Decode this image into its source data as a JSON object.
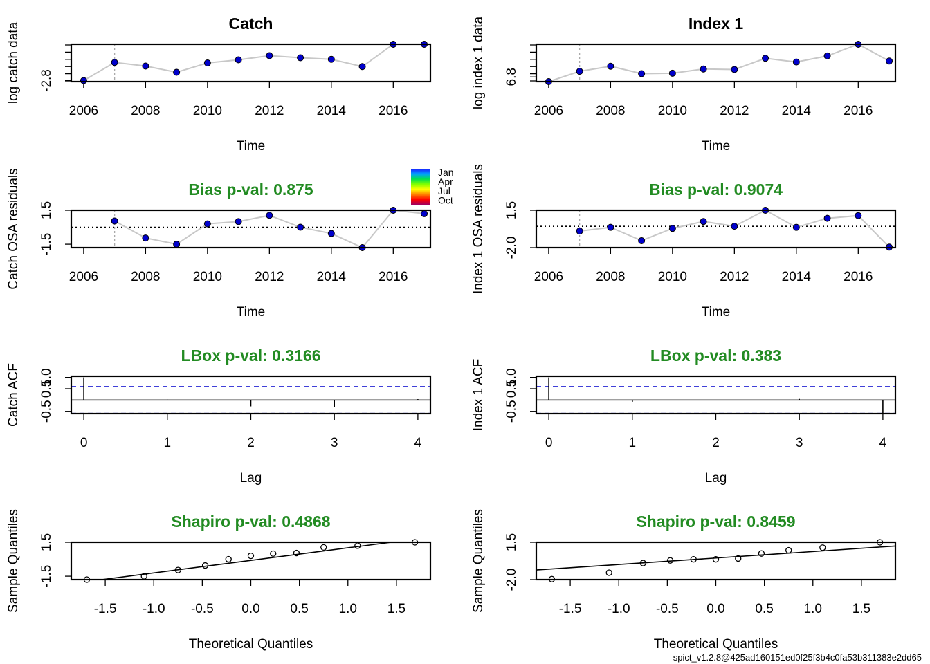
{
  "footer": "spict_v1.2.8@425ad160151ed0f25f3b4c0fa53b311383e2dd65",
  "colors": {
    "point_fill": "#0000cc",
    "line": "#c8c8c8",
    "stat_title": "#228b22",
    "ci_line": "#0000cc",
    "vline": "#aaaaaa"
  },
  "month_legend": {
    "labels": [
      "Jan",
      "Apr",
      "Jul",
      "Oct"
    ],
    "gradient_colors": [
      "#1a1aff",
      "#00a0ff",
      "#00e050",
      "#80ff00",
      "#ffff00",
      "#ff8000",
      "#ff0000",
      "#a00060"
    ]
  },
  "chart_data": [
    {
      "type": "line",
      "title": "Catch",
      "xlabel": "Time",
      "ylabel": "log catch data",
      "xlim": [
        2005.6,
        2017.2
      ],
      "ylim": [
        -2.82,
        -2.1
      ],
      "xticks": [
        "2006",
        "2008",
        "2010",
        "2012",
        "2014",
        "2016"
      ],
      "yticks": [
        "-2.8"
      ],
      "x": [
        2006,
        2007,
        2008,
        2009,
        2010,
        2011,
        2012,
        2013,
        2014,
        2015,
        2016,
        2017
      ],
      "y": [
        -2.8,
        -2.45,
        -2.52,
        -2.64,
        -2.46,
        -2.4,
        -2.32,
        -2.36,
        -2.39,
        -2.53,
        -2.1,
        -2.1
      ],
      "vline": 2007
    },
    {
      "type": "line",
      "title": "Index 1",
      "xlabel": "Time",
      "ylabel": "log index 1 data",
      "xlim": [
        2005.6,
        2017.2
      ],
      "ylim": [
        6.7,
        7.5
      ],
      "xticks": [
        "2006",
        "2008",
        "2010",
        "2012",
        "2014",
        "2016"
      ],
      "yticks": [
        "6.8"
      ],
      "x": [
        2006,
        2007,
        2008,
        2009,
        2010,
        2011,
        2012,
        2013,
        2014,
        2015,
        2016,
        2017
      ],
      "y": [
        6.7,
        6.92,
        7.03,
        6.87,
        6.88,
        6.97,
        6.96,
        7.2,
        7.12,
        7.25,
        7.5,
        7.14
      ],
      "vline": 2007
    },
    {
      "type": "line",
      "title": "Bias p-val: 0.875",
      "xlabel": "Time",
      "ylabel": "Catch OSA residuals",
      "xlim": [
        2005.6,
        2017.2
      ],
      "ylim": [
        -1.8,
        1.5
      ],
      "xticks": [
        "2006",
        "2008",
        "2010",
        "2012",
        "2014",
        "2016"
      ],
      "yticks": [
        "-1.5",
        "1.5"
      ],
      "x": [
        2007,
        2008,
        2009,
        2010,
        2011,
        2012,
        2013,
        2014,
        2015,
        2016,
        2017
      ],
      "y": [
        0.55,
        -0.95,
        -1.5,
        0.3,
        0.5,
        1.05,
        0.0,
        -0.55,
        -1.8,
        1.5,
        1.2
      ],
      "hline": 0,
      "vline": 2007
    },
    {
      "type": "line",
      "title": "Bias p-val: 0.9074",
      "xlabel": "Time",
      "ylabel": "Index 1 OSA residuals",
      "xlim": [
        2005.6,
        2017.2
      ],
      "ylim": [
        -2.0,
        1.5
      ],
      "xticks": [
        "2006",
        "2008",
        "2010",
        "2012",
        "2014",
        "2016"
      ],
      "yticks": [
        "-2.0",
        "1.5"
      ],
      "x": [
        2007,
        2008,
        2009,
        2010,
        2011,
        2012,
        2013,
        2014,
        2015,
        2016,
        2017
      ],
      "y": [
        -0.45,
        -0.1,
        -1.35,
        -0.2,
        0.45,
        0.0,
        1.5,
        -0.1,
        0.75,
        1.0,
        -1.95
      ],
      "hline": 0,
      "vline": 2007
    },
    {
      "type": "bar",
      "title": "LBox p-val: 0.3166",
      "xlabel": "Lag",
      "ylabel": "Catch ACF",
      "xlim": [
        -0.15,
        4.15
      ],
      "ylim": [
        -0.6,
        1.05
      ],
      "xticks": [
        "0",
        "1",
        "2",
        "3",
        "4"
      ],
      "yticks": [
        "-0.5",
        "0.5",
        "1.0"
      ],
      "lags": [
        0,
        1,
        2,
        3,
        4
      ],
      "acf": [
        1.0,
        0.02,
        -0.28,
        -0.32,
        0.04
      ],
      "ci": [
        0.59,
        -0.59
      ]
    },
    {
      "type": "bar",
      "title": "LBox p-val: 0.383",
      "xlabel": "Lag",
      "ylabel": "Index 1 ACF",
      "xlim": [
        -0.15,
        4.15
      ],
      "ylim": [
        -0.6,
        1.05
      ],
      "xticks": [
        "0",
        "1",
        "2",
        "3",
        "4"
      ],
      "yticks": [
        "-0.5",
        "0.5",
        "1.0"
      ],
      "lags": [
        0,
        1,
        2,
        3,
        4
      ],
      "acf": [
        1.0,
        -0.08,
        0.0,
        0.05,
        -0.6
      ],
      "ci": [
        0.59,
        -0.59
      ]
    },
    {
      "type": "scatter",
      "title": "Shapiro p-val: 0.4868",
      "xlabel": "Theoretical Quantiles",
      "ylabel": "Sample Quantiles",
      "xlim": [
        -1.85,
        1.85
      ],
      "ylim": [
        -1.8,
        1.5
      ],
      "xticks": [
        "-1.5",
        "-1.0",
        "-0.5",
        "0.0",
        "0.5",
        "1.0",
        "1.5"
      ],
      "yticks": [
        "-1.5",
        "1.5"
      ],
      "x": [
        -1.69,
        -1.1,
        -0.75,
        -0.47,
        -0.23,
        0.0,
        0.23,
        0.47,
        0.75,
        1.1,
        1.69
      ],
      "y": [
        -1.8,
        -1.5,
        -0.95,
        -0.55,
        0.0,
        0.3,
        0.5,
        0.55,
        1.05,
        1.2,
        1.5
      ],
      "qqline": [
        [
          -1.85,
          -2.15
        ],
        [
          1.85,
          1.95
        ]
      ]
    },
    {
      "type": "scatter",
      "title": "Shapiro p-val: 0.8459",
      "xlabel": "Theoretical Quantiles",
      "ylabel": "Sample Quantiles",
      "xlim": [
        -1.85,
        1.85
      ],
      "ylim": [
        -2.0,
        1.5
      ],
      "xticks": [
        "-1.5",
        "-1.0",
        "-0.5",
        "0.0",
        "0.5",
        "1.0",
        "1.5"
      ],
      "yticks": [
        "-2.0",
        "1.5"
      ],
      "x": [
        -1.69,
        -1.1,
        -0.75,
        -0.47,
        -0.23,
        0.0,
        0.23,
        0.47,
        0.75,
        1.1,
        1.69
      ],
      "y": [
        -1.95,
        -1.35,
        -0.45,
        -0.2,
        -0.1,
        -0.1,
        -0.02,
        0.45,
        0.75,
        1.0,
        1.5
      ],
      "qqline": [
        [
          -1.85,
          -1.1
        ],
        [
          1.85,
          1.15
        ]
      ]
    }
  ]
}
